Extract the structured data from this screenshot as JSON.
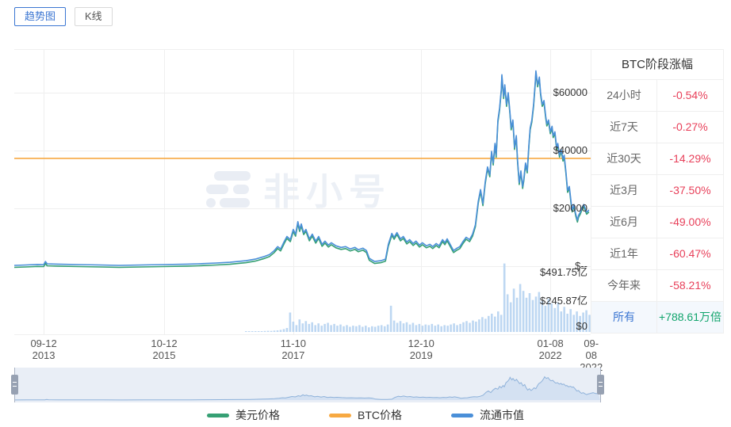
{
  "colors": {
    "accent": "#3b76d2",
    "down": "#e8405a",
    "up": "#10a46c",
    "bar": "#bdd7f2",
    "grid": "#efefef",
    "nav_line": "#8fb2da",
    "nav_fill": "#d4e1f2"
  },
  "tabs": [
    {
      "label": "趋势图",
      "active": true
    },
    {
      "label": "K线",
      "active": false
    }
  ],
  "watermark_text": "非小号",
  "side_table": {
    "title": "BTC阶段涨幅",
    "rows": [
      {
        "label": "24小时",
        "value": "-0.54%",
        "direction": "down",
        "highlight": false
      },
      {
        "label": "近7天",
        "value": "-0.27%",
        "direction": "down",
        "highlight": false
      },
      {
        "label": "近30天",
        "value": "-14.29%",
        "direction": "down",
        "highlight": false
      },
      {
        "label": "近3月",
        "value": "-37.50%",
        "direction": "down",
        "highlight": false
      },
      {
        "label": "近6月",
        "value": "-49.00%",
        "direction": "down",
        "highlight": false
      },
      {
        "label": "近1年",
        "value": "-60.47%",
        "direction": "down",
        "highlight": false
      },
      {
        "label": "今年来",
        "value": "-58.21%",
        "direction": "down",
        "highlight": false
      },
      {
        "label": "所有",
        "value": "+788.61万倍",
        "direction": "up",
        "highlight": true
      }
    ]
  },
  "legend": [
    {
      "label": "美元价格",
      "color": "#36a074"
    },
    {
      "label": "BTC价格",
      "color": "#f7a942"
    },
    {
      "label": "流通市值",
      "color": "#4a8fd8"
    }
  ],
  "chart_data": {
    "type": "mixed",
    "title": "",
    "ylim_price_usd": [
      0,
      70000
    ],
    "x_axis": {
      "ticks": [
        {
          "top": "09-12",
          "bottom": "2013",
          "f": 0.051,
          "grid": true
        },
        {
          "top": "10-12",
          "bottom": "2015",
          "f": 0.26,
          "grid": true
        },
        {
          "top": "11-10",
          "bottom": "2017",
          "f": 0.484,
          "grid": true
        },
        {
          "top": "12-10",
          "bottom": "2019",
          "f": 0.706,
          "grid": true
        },
        {
          "top": "01-08",
          "bottom": "2022",
          "f": 0.93,
          "grid": true
        },
        {
          "top": "09-08",
          "bottom": "2022",
          "f": 1.001,
          "grid": false
        }
      ]
    },
    "price_axis": {
      "ticks": [
        {
          "label": "$60000",
          "value": 60000
        },
        {
          "label": "$40000",
          "value": 40000
        },
        {
          "label": "$20000",
          "value": 20000
        },
        {
          "label": "$--",
          "value": 0
        }
      ]
    },
    "cap_axis": {
      "ticks": [
        {
          "label": "$491.75亿",
          "value": 491.75
        },
        {
          "label": "$245.87亿",
          "value": 245.87
        },
        {
          "label": "$0",
          "value": 0
        }
      ]
    },
    "btc_series": {
      "name": "BTC价格",
      "color": "#f7a942",
      "constant_btc": 1,
      "plot_level_usd": 37300
    },
    "usd_series": {
      "name": "美元价格",
      "color": "#36a074",
      "note": "overlaps marketcap line"
    },
    "price_series": {
      "name": "流通市值/美元价格",
      "color": "#4a8fd8",
      "unit": "USD",
      "points": [
        [
          0.0,
          270
        ],
        [
          0.02,
          400
        ],
        [
          0.04,
          600
        ],
        [
          0.051,
          540
        ],
        [
          0.054,
          1620
        ],
        [
          0.057,
          810
        ],
        [
          0.075,
          700
        ],
        [
          0.113,
          540
        ],
        [
          0.15,
          400
        ],
        [
          0.182,
          270
        ],
        [
          0.22,
          400
        ],
        [
          0.257,
          540
        ],
        [
          0.3,
          700
        ],
        [
          0.319,
          810
        ],
        [
          0.35,
          1100
        ],
        [
          0.374,
          1350
        ],
        [
          0.402,
          1890
        ],
        [
          0.418,
          2430
        ],
        [
          0.432,
          3240
        ],
        [
          0.443,
          4050
        ],
        [
          0.451,
          5400
        ],
        [
          0.457,
          6760
        ],
        [
          0.462,
          5950
        ],
        [
          0.468,
          8380
        ],
        [
          0.473,
          10270
        ],
        [
          0.479,
          9190
        ],
        [
          0.484,
          12700
        ],
        [
          0.488,
          11080
        ],
        [
          0.492,
          15400
        ],
        [
          0.495,
          12700
        ],
        [
          0.498,
          14590
        ],
        [
          0.502,
          11620
        ],
        [
          0.506,
          12700
        ],
        [
          0.512,
          9460
        ],
        [
          0.517,
          11080
        ],
        [
          0.523,
          8650
        ],
        [
          0.528,
          10270
        ],
        [
          0.534,
          7570
        ],
        [
          0.539,
          8650
        ],
        [
          0.545,
          7300
        ],
        [
          0.55,
          8110
        ],
        [
          0.558,
          7030
        ],
        [
          0.567,
          6490
        ],
        [
          0.575,
          6760
        ],
        [
          0.583,
          5950
        ],
        [
          0.591,
          6490
        ],
        [
          0.597,
          5680
        ],
        [
          0.605,
          6220
        ],
        [
          0.611,
          5400
        ],
        [
          0.616,
          2700
        ],
        [
          0.625,
          1620
        ],
        [
          0.636,
          1890
        ],
        [
          0.644,
          2430
        ],
        [
          0.649,
          7570
        ],
        [
          0.655,
          11350
        ],
        [
          0.659,
          10000
        ],
        [
          0.664,
          11620
        ],
        [
          0.67,
          9460
        ],
        [
          0.675,
          10270
        ],
        [
          0.681,
          8380
        ],
        [
          0.686,
          9190
        ],
        [
          0.692,
          7840
        ],
        [
          0.697,
          8650
        ],
        [
          0.703,
          7300
        ],
        [
          0.708,
          8110
        ],
        [
          0.715,
          7030
        ],
        [
          0.721,
          7570
        ],
        [
          0.726,
          6760
        ],
        [
          0.732,
          7840
        ],
        [
          0.737,
          7030
        ],
        [
          0.743,
          9190
        ],
        [
          0.747,
          8110
        ],
        [
          0.751,
          9460
        ],
        [
          0.757,
          7300
        ],
        [
          0.762,
          5400
        ],
        [
          0.768,
          6220
        ],
        [
          0.773,
          6760
        ],
        [
          0.778,
          8380
        ],
        [
          0.784,
          10000
        ],
        [
          0.79,
          9190
        ],
        [
          0.795,
          11080
        ],
        [
          0.8,
          14320
        ],
        [
          0.805,
          22430
        ],
        [
          0.809,
          26490
        ],
        [
          0.813,
          21620
        ],
        [
          0.817,
          29190
        ],
        [
          0.821,
          34320
        ],
        [
          0.825,
          31620
        ],
        [
          0.828,
          39730
        ],
        [
          0.831,
          35680
        ],
        [
          0.834,
          42430
        ],
        [
          0.836,
          38380
        ],
        [
          0.839,
          50540
        ],
        [
          0.842,
          54590
        ],
        [
          0.845,
          61350
        ],
        [
          0.846,
          66220
        ],
        [
          0.849,
          58650
        ],
        [
          0.851,
          62700
        ],
        [
          0.854,
          55950
        ],
        [
          0.857,
          60000
        ],
        [
          0.86,
          53240
        ],
        [
          0.862,
          47840
        ],
        [
          0.865,
          50540
        ],
        [
          0.868,
          41080
        ],
        [
          0.871,
          45140
        ],
        [
          0.873,
          37030
        ],
        [
          0.876,
          28920
        ],
        [
          0.879,
          32970
        ],
        [
          0.882,
          27570
        ],
        [
          0.884,
          30270
        ],
        [
          0.887,
          35680
        ],
        [
          0.89,
          32970
        ],
        [
          0.893,
          42430
        ],
        [
          0.895,
          47840
        ],
        [
          0.898,
          50540
        ],
        [
          0.901,
          55950
        ],
        [
          0.904,
          64050
        ],
        [
          0.905,
          67570
        ],
        [
          0.908,
          62700
        ],
        [
          0.911,
          65410
        ],
        [
          0.913,
          60000
        ],
        [
          0.916,
          55950
        ],
        [
          0.919,
          57300
        ],
        [
          0.922,
          51890
        ],
        [
          0.924,
          49190
        ],
        [
          0.927,
          50540
        ],
        [
          0.93,
          46490
        ],
        [
          0.933,
          48380
        ],
        [
          0.935,
          45140
        ],
        [
          0.938,
          46490
        ],
        [
          0.941,
          41080
        ],
        [
          0.943,
          42430
        ],
        [
          0.946,
          38380
        ],
        [
          0.949,
          40270
        ],
        [
          0.952,
          37030
        ],
        [
          0.954,
          38380
        ],
        [
          0.957,
          32970
        ],
        [
          0.96,
          26220
        ],
        [
          0.963,
          27570
        ],
        [
          0.966,
          22160
        ],
        [
          0.968,
          19460
        ],
        [
          0.971,
          21350
        ],
        [
          0.974,
          18110
        ],
        [
          0.977,
          15950
        ],
        [
          0.979,
          17570
        ],
        [
          0.982,
          18650
        ],
        [
          0.985,
          20270
        ],
        [
          0.988,
          21350
        ],
        [
          0.99,
          20270
        ],
        [
          0.993,
          18650
        ],
        [
          0.997,
          19460
        ]
      ]
    },
    "cap_bars": {
      "name": "流通市值",
      "unit": "亿USD",
      "f_start": 0.402,
      "f_end": 0.998,
      "values": [
        5,
        4,
        6,
        5,
        7,
        6,
        8,
        10,
        9,
        12,
        14,
        18,
        25,
        35,
        170,
        90,
        60,
        110,
        75,
        95,
        70,
        85,
        60,
        75,
        55,
        70,
        80,
        60,
        70,
        55,
        65,
        50,
        60,
        45,
        55,
        50,
        60,
        45,
        55,
        40,
        50,
        45,
        55,
        60,
        50,
        65,
        230,
        100,
        80,
        95,
        75,
        85,
        65,
        80,
        60,
        70,
        55,
        65,
        60,
        70,
        55,
        65,
        50,
        60,
        55,
        65,
        75,
        60,
        70,
        85,
        95,
        80,
        100,
        90,
        110,
        130,
        115,
        140,
        160,
        135,
        180,
        150,
        600,
        330,
        260,
        380,
        300,
        420,
        360,
        300,
        340,
        280,
        310,
        350,
        270,
        230,
        290,
        250,
        210,
        260,
        180,
        220,
        160,
        200,
        150,
        180,
        140,
        170,
        190,
        150
      ]
    }
  }
}
